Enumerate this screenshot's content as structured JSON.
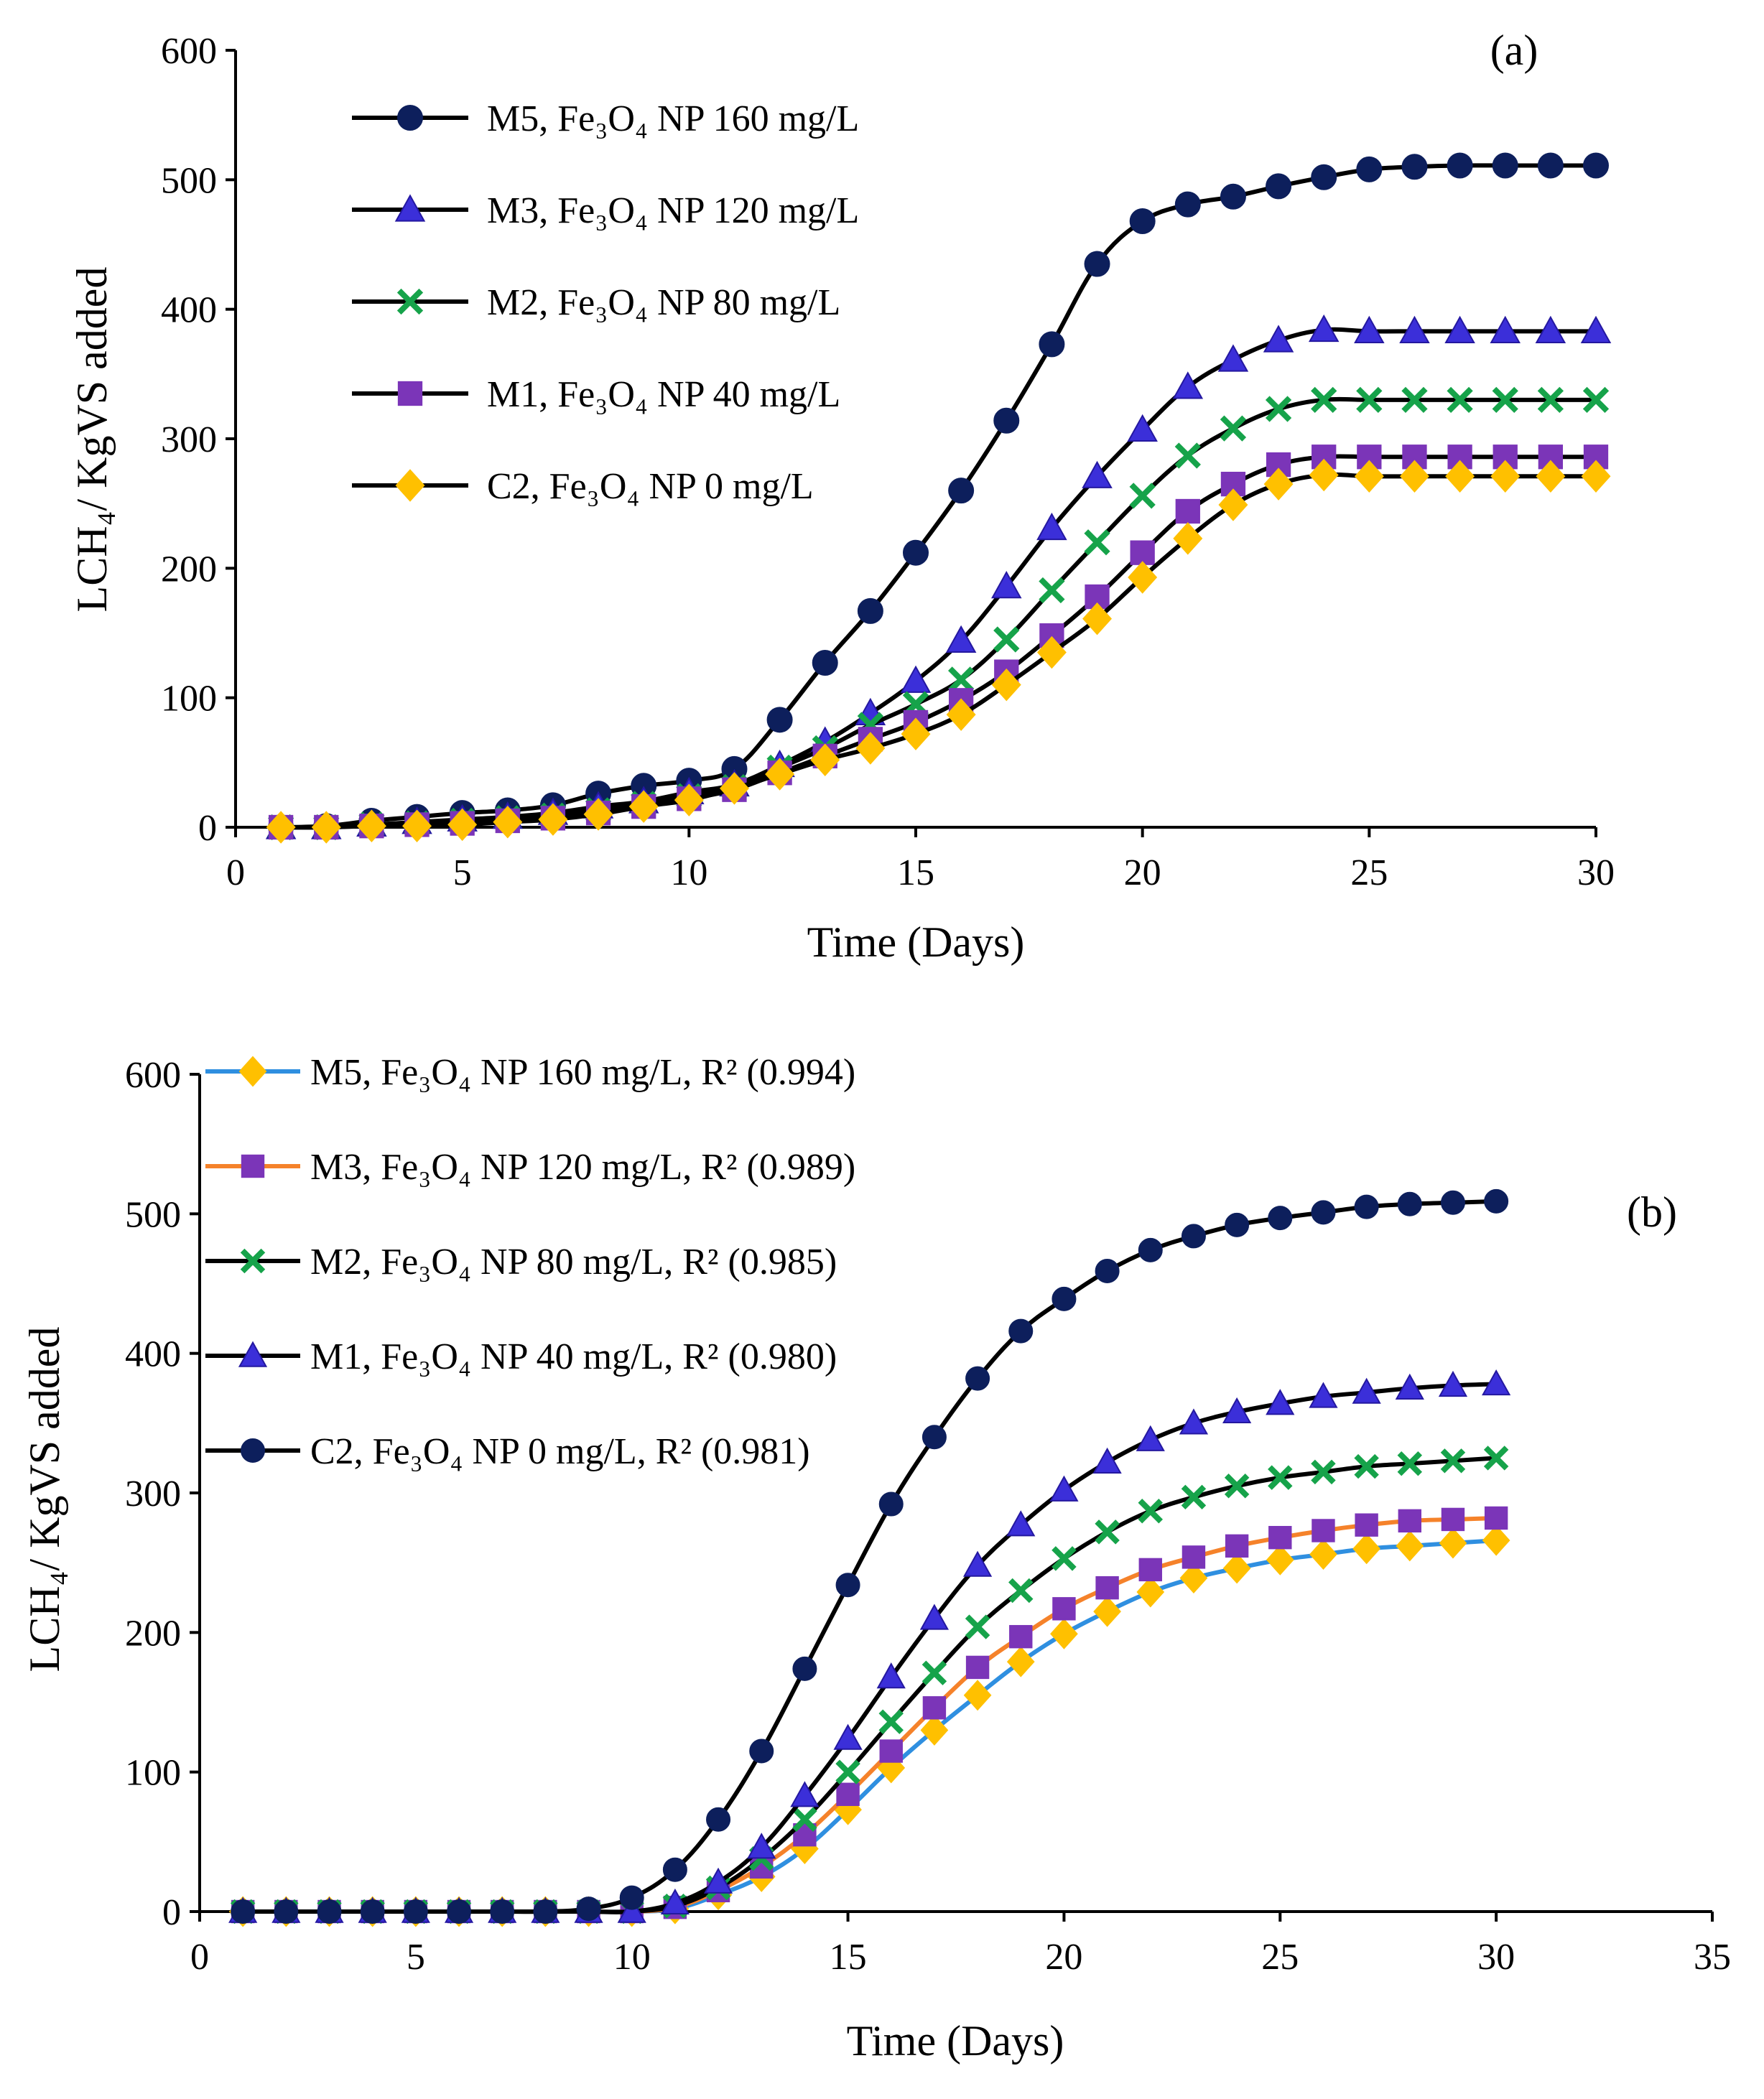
{
  "chart_data": [
    {
      "panel": "a",
      "panel_label": "(a)",
      "type": "line",
      "xlabel": "Time (Days)",
      "ylabel": "LCH₄/ KgVS added",
      "xlim": [
        0,
        30
      ],
      "ylim": [
        0,
        600
      ],
      "xticks": [
        "0",
        "5",
        "10",
        "15",
        "20",
        "25",
        "30"
      ],
      "yticks": [
        "0",
        "100",
        "200",
        "300",
        "400",
        "500",
        "600"
      ],
      "x": [
        1,
        2,
        3,
        4,
        5,
        6,
        7,
        8,
        9,
        10,
        11,
        12,
        13,
        14,
        15,
        16,
        17,
        18,
        19,
        20,
        21,
        22,
        23,
        24,
        25,
        26,
        27,
        28,
        29,
        30
      ],
      "series": [
        {
          "name": "M5, Fe₃O₄ NP 160 mg/L",
          "line_color": "#000000",
          "marker": "circle",
          "marker_color": "#0D1F5C",
          "values": [
            0,
            1,
            5,
            8,
            11,
            13,
            17,
            26,
            32,
            36,
            45,
            83,
            127,
            167,
            212,
            260,
            314,
            373,
            435,
            468,
            481,
            487,
            495,
            502,
            508,
            510,
            511,
            511,
            511,
            511
          ]
        },
        {
          "name": "M3, Fe₃O₄ NP 120 mg/L",
          "line_color": "#000000",
          "marker": "triangle",
          "marker_color": "#3B2FD9",
          "values": [
            0,
            0,
            2,
            4,
            6,
            8,
            11,
            16,
            20,
            27,
            33,
            48,
            66,
            88,
            113,
            144,
            186,
            231,
            271,
            307,
            340,
            361,
            376,
            384,
            383,
            383,
            383,
            383,
            383,
            383
          ]
        },
        {
          "name": "M2, Fe₃O₄ NP 80 mg/L",
          "line_color": "#000000",
          "marker": "cross",
          "marker_color": "#16A34A",
          "values": [
            0,
            0,
            2,
            3,
            5,
            7,
            9,
            13,
            18,
            24,
            31,
            46,
            61,
            79,
            95,
            114,
            145,
            183,
            220,
            256,
            287,
            308,
            323,
            330,
            330,
            330,
            330,
            330,
            330,
            330
          ]
        },
        {
          "name": "M1, Fe₃O₄ NP 40 mg/L",
          "line_color": "#000000",
          "marker": "square",
          "marker_color": "#7B35B8",
          "values": [
            0,
            0,
            1,
            2,
            3,
            5,
            7,
            11,
            16,
            22,
            29,
            42,
            55,
            68,
            81,
            98,
            120,
            148,
            178,
            212,
            244,
            265,
            280,
            286,
            286,
            286,
            286,
            286,
            286,
            286
          ]
        },
        {
          "name": "C2, Fe₃O₄ NP 0 mg/L",
          "line_color": "#000000",
          "marker": "diamond",
          "marker_color": "#FFC000",
          "values": [
            0,
            0,
            1,
            1,
            2,
            4,
            6,
            10,
            16,
            21,
            30,
            41,
            52,
            61,
            72,
            87,
            110,
            135,
            161,
            193,
            223,
            249,
            265,
            272,
            271,
            271,
            271,
            271,
            271,
            271
          ]
        }
      ]
    },
    {
      "panel": "b",
      "panel_label": "(b)",
      "type": "line",
      "xlabel": "Time (Days)",
      "ylabel": "LCH₄/ KgVS added",
      "xlim": [
        0,
        35
      ],
      "ylim": [
        0,
        600
      ],
      "xticks": [
        "0",
        "5",
        "10",
        "15",
        "20",
        "25",
        "30",
        "35"
      ],
      "yticks": [
        "0",
        "100",
        "200",
        "300",
        "400",
        "500",
        "600"
      ],
      "x": [
        1,
        2,
        3,
        4,
        5,
        6,
        7,
        8,
        9,
        10,
        11,
        12,
        13,
        14,
        15,
        16,
        17,
        18,
        19,
        20,
        21,
        22,
        23,
        24,
        25,
        26,
        27,
        28,
        29,
        30
      ],
      "series": [
        {
          "name": "M5, Fe₃O₄ NP 160 mg/L, R² (0.994)",
          "line_color": "#2F8FE0",
          "marker": "diamond",
          "marker_color": "#FFC000",
          "values": [
            0,
            0,
            0,
            0,
            0,
            0,
            0,
            0,
            0,
            0,
            2,
            12,
            25,
            45,
            73,
            103,
            130,
            155,
            179,
            199,
            215,
            229,
            239,
            246,
            252,
            256,
            260,
            262,
            264,
            266
          ]
        },
        {
          "name": "M3, Fe₃O₄ NP 120 mg/L, R² (0.989)",
          "line_color": "#F5822A",
          "marker": "square",
          "marker_color": "#7B35B8",
          "values": [
            0,
            0,
            0,
            0,
            0,
            0,
            0,
            0,
            0,
            0,
            3,
            15,
            32,
            55,
            84,
            115,
            146,
            175,
            197,
            217,
            232,
            245,
            254,
            262,
            268,
            273,
            277,
            280,
            281,
            282
          ]
        },
        {
          "name": "M2, Fe₃O₄ NP 80 mg/L, R² (0.985)",
          "line_color": "#000000",
          "marker": "cross",
          "marker_color": "#16A34A",
          "values": [
            0,
            0,
            0,
            0,
            0,
            0,
            0,
            0,
            0,
            0,
            4,
            17,
            38,
            66,
            100,
            136,
            171,
            204,
            230,
            253,
            272,
            287,
            297,
            305,
            311,
            315,
            319,
            321,
            323,
            325
          ]
        },
        {
          "name": "M1, Fe₃O₄ NP 40 mg/L, R² (0.980)",
          "line_color": "#000000",
          "marker": "triangle",
          "marker_color": "#3B2FD9",
          "values": [
            0,
            0,
            0,
            0,
            0,
            0,
            0,
            0,
            0,
            0,
            6,
            21,
            46,
            83,
            124,
            168,
            210,
            248,
            277,
            302,
            322,
            338,
            350,
            358,
            364,
            369,
            372,
            375,
            377,
            378
          ]
        },
        {
          "name": "C2, Fe₃O₄ NP 0 mg/L, R² (0.981)",
          "line_color": "#000000",
          "marker": "circle",
          "marker_color": "#0D1F5C",
          "values": [
            0,
            0,
            0,
            0,
            0,
            0,
            0,
            0,
            2,
            10,
            30,
            66,
            115,
            174,
            234,
            292,
            340,
            382,
            416,
            439,
            459,
            474,
            484,
            492,
            497,
            501,
            505,
            507,
            508,
            509
          ]
        }
      ]
    }
  ]
}
